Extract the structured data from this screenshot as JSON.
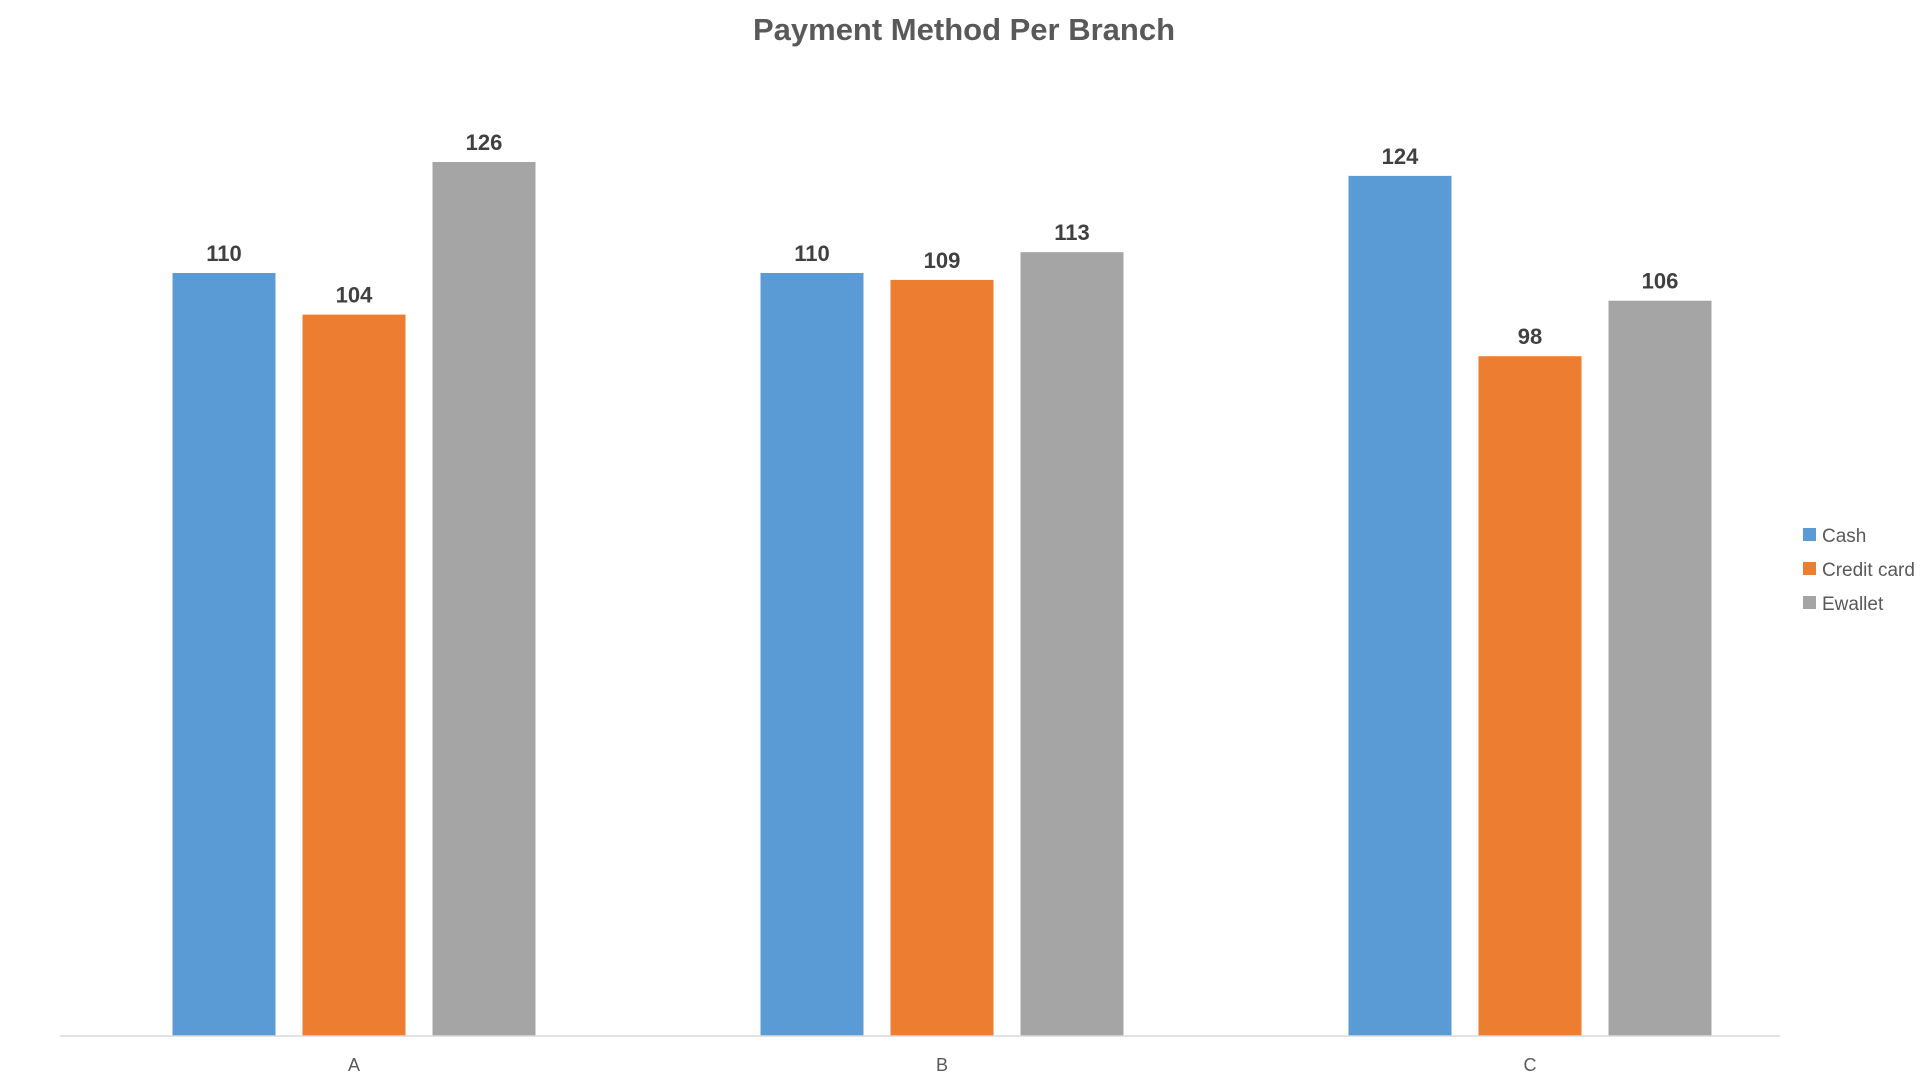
{
  "chart_data": {
    "type": "bar",
    "title": "Payment Method Per Branch",
    "xlabel": "",
    "ylabel": "",
    "categories": [
      "A",
      "B",
      "C"
    ],
    "series": [
      {
        "name": "Cash",
        "values": [
          110,
          110,
          124
        ],
        "color": "#5B9BD5"
      },
      {
        "name": "Credit card",
        "values": [
          104,
          109,
          98
        ],
        "color": "#ED7D31"
      },
      {
        "name": "Ewallet",
        "values": [
          126,
          113,
          106
        ],
        "color": "#A5A5A5"
      }
    ],
    "ylim": [
      0,
      126
    ],
    "grid": false,
    "legend": "right",
    "data_labels": true
  }
}
